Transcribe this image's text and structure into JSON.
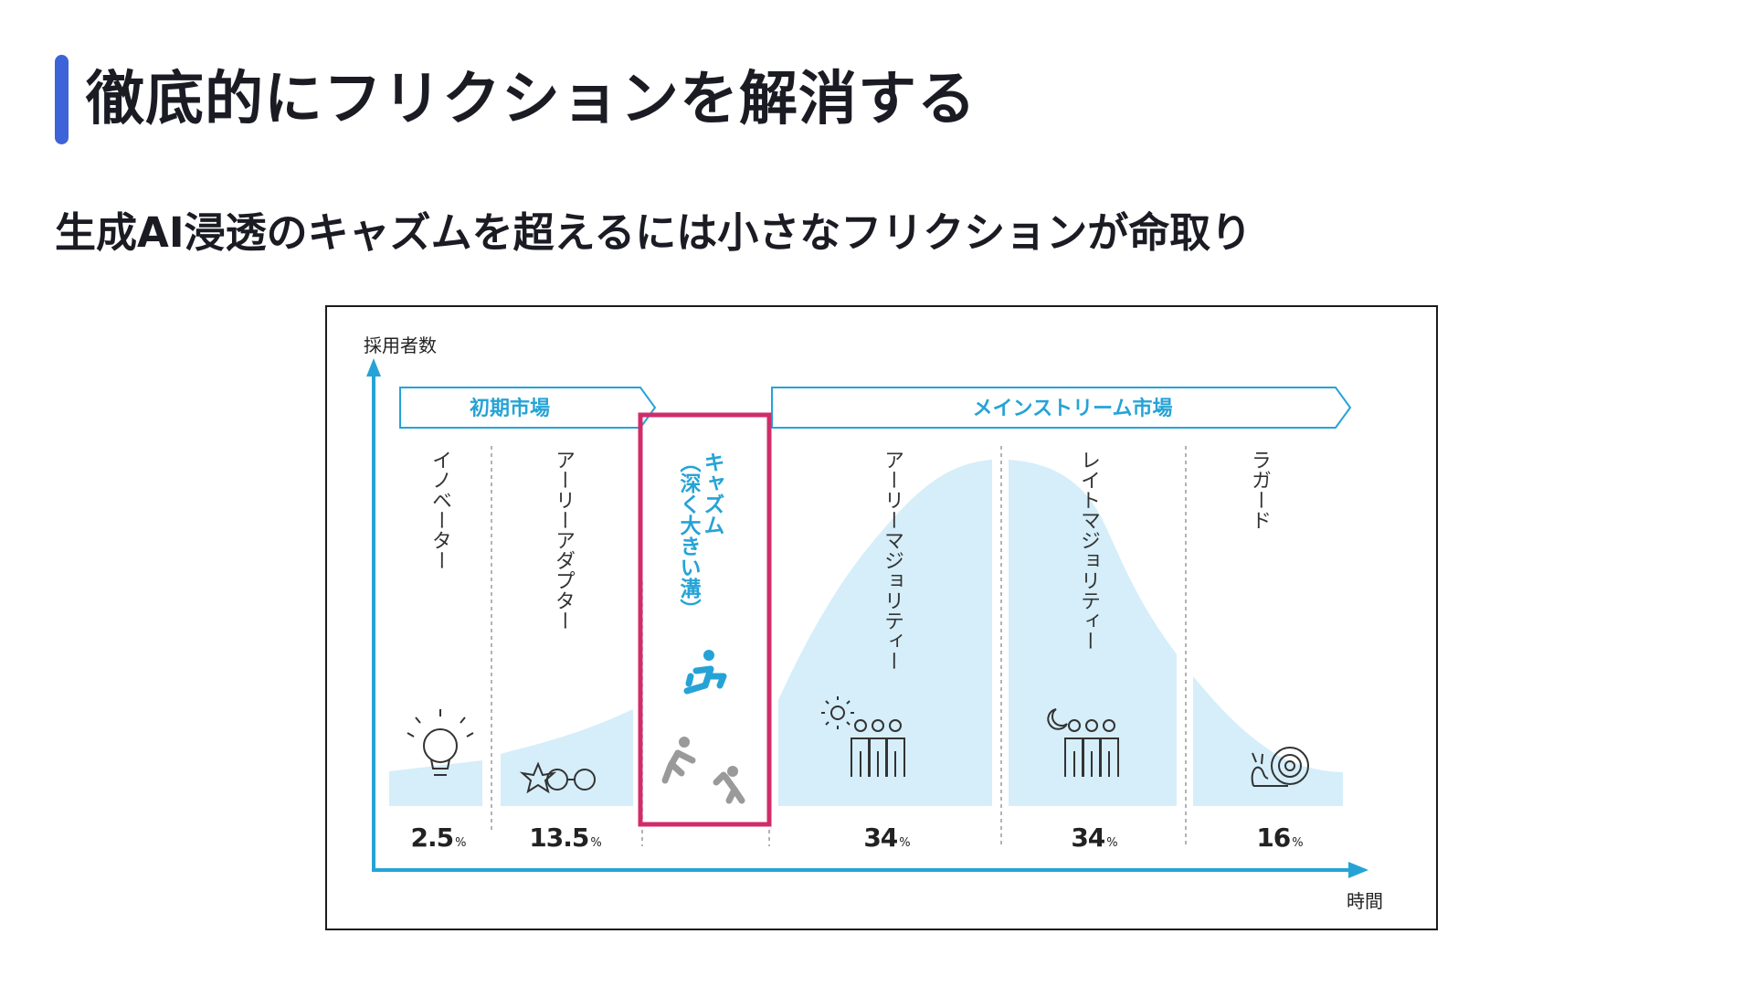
{
  "title": "徹底的にフリクションを解消する",
  "subtitle": "生成AI浸透のキャズムを超えるには小さなフリクションが命取り",
  "diagram": {
    "y_axis_label": "採用者数",
    "x_axis_label": "時間",
    "early_market_label": "初期市場",
    "mainstream_market_label": "メインストリーム市場",
    "segments": [
      {
        "label": "イノベーター",
        "percent": "2.5",
        "icon": "lightbulb-icon"
      },
      {
        "label": "アーリーアダプター",
        "percent": "13.5",
        "icon": "glasses-icon"
      },
      {
        "label": "キャズム\n（深く大きい溝）",
        "percent": "",
        "icon": "jumping-person-icon"
      },
      {
        "label": "アーリーマジョリティー",
        "percent": "34",
        "icon": "sun-people-icon"
      },
      {
        "label": "レイトマジョリティー",
        "percent": "34",
        "icon": "moon-people-icon"
      },
      {
        "label": "ラガード",
        "percent": "16",
        "icon": "snail-icon"
      }
    ],
    "percent_unit": "%",
    "colors": {
      "accent": "#26a3d6",
      "curve_fill": "#d5eef9",
      "chasm_highlight": "#d12c6a",
      "title_bar": "#3d63d9",
      "icon_gray": "#9a9a9a"
    }
  }
}
